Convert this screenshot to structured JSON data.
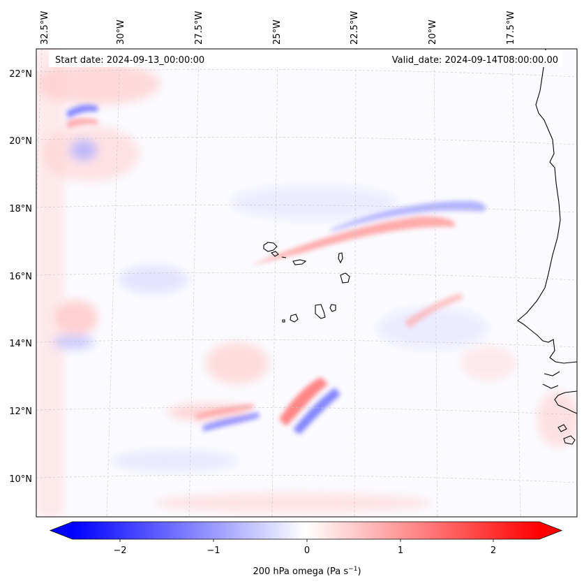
{
  "map": {
    "start_label": "Start date: 2024-09-13_00:00:00",
    "valid_label": "Valid_date: 2024-09-14T08:00:00.00",
    "lon_labels": [
      "32.5°W",
      "30°W",
      "27.5°W",
      "25°W",
      "22.5°W",
      "20°W",
      "17.5°W"
    ],
    "lat_labels": [
      "22°N",
      "20°N",
      "18°N",
      "16°N",
      "14°N",
      "12°N",
      "10°N"
    ],
    "field_colors": {
      "negative": "#0000ff",
      "zero": "#ffffff",
      "positive": "#ff0000"
    },
    "coast_color": "#000000",
    "grid_color": "#c8c8c8"
  },
  "colorbar": {
    "label_main": "200 hPa omega (Pa s",
    "label_sup": "−1",
    "label_close": ")",
    "ticks": [
      "−2",
      "−1",
      "0",
      "1",
      "2"
    ],
    "range": [
      -2.75,
      2.75
    ]
  }
}
